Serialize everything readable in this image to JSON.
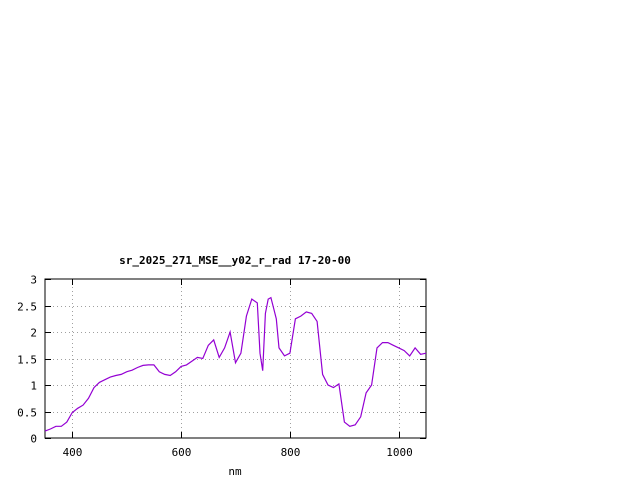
{
  "chart_data": {
    "type": "line",
    "title": "sr_2025_271_MSE__y02_r_rad 17-20-00",
    "xlabel": "nm",
    "ylabel": "",
    "xlim": [
      350,
      1050
    ],
    "ylim": [
      0,
      3
    ],
    "x_ticks": [
      400,
      600,
      800,
      1000
    ],
    "x_tick_labels": [
      "400",
      "600",
      "800",
      "1000"
    ],
    "y_ticks": [
      0,
      0.5,
      1,
      1.5,
      2,
      2.5,
      3
    ],
    "y_tick_labels": [
      "0",
      "0.5",
      "1",
      "1.5",
      "2",
      "2.5",
      "3"
    ],
    "grid": true,
    "legend": "none",
    "series_color": "#9400d3",
    "series": [
      {
        "x": [
          350,
          360,
          370,
          380,
          390,
          400,
          410,
          420,
          430,
          440,
          450,
          460,
          470,
          480,
          490,
          500,
          510,
          520,
          530,
          540,
          550,
          560,
          570,
          580,
          590,
          600,
          610,
          620,
          630,
          640,
          650,
          660,
          670,
          680,
          690,
          700,
          710,
          720,
          730,
          740,
          745,
          750,
          755,
          760,
          765,
          770,
          775,
          780,
          790,
          800,
          810,
          820,
          830,
          840,
          850,
          860,
          870,
          880,
          890,
          900,
          910,
          920,
          930,
          940,
          950,
          960,
          970,
          980,
          990,
          1000,
          1010,
          1020,
          1030,
          1040,
          1050
        ],
        "values": [
          0.13,
          0.17,
          0.22,
          0.22,
          0.3,
          0.48,
          0.56,
          0.62,
          0.75,
          0.95,
          1.05,
          1.1,
          1.15,
          1.18,
          1.2,
          1.25,
          1.28,
          1.33,
          1.37,
          1.38,
          1.38,
          1.25,
          1.2,
          1.18,
          1.25,
          1.35,
          1.38,
          1.45,
          1.52,
          1.5,
          1.75,
          1.85,
          1.52,
          1.7,
          2.0,
          1.42,
          1.6,
          2.3,
          2.62,
          2.55,
          1.6,
          1.27,
          2.35,
          2.62,
          2.65,
          2.45,
          2.25,
          1.7,
          1.55,
          1.6,
          2.25,
          2.3,
          2.38,
          2.35,
          2.2,
          1.2,
          1.0,
          0.95,
          1.02,
          0.3,
          0.22,
          0.25,
          0.4,
          0.85,
          1.0,
          1.7,
          1.8,
          1.8,
          1.75,
          1.7,
          1.65,
          1.55,
          1.7,
          1.58,
          1.6
        ]
      }
    ]
  }
}
